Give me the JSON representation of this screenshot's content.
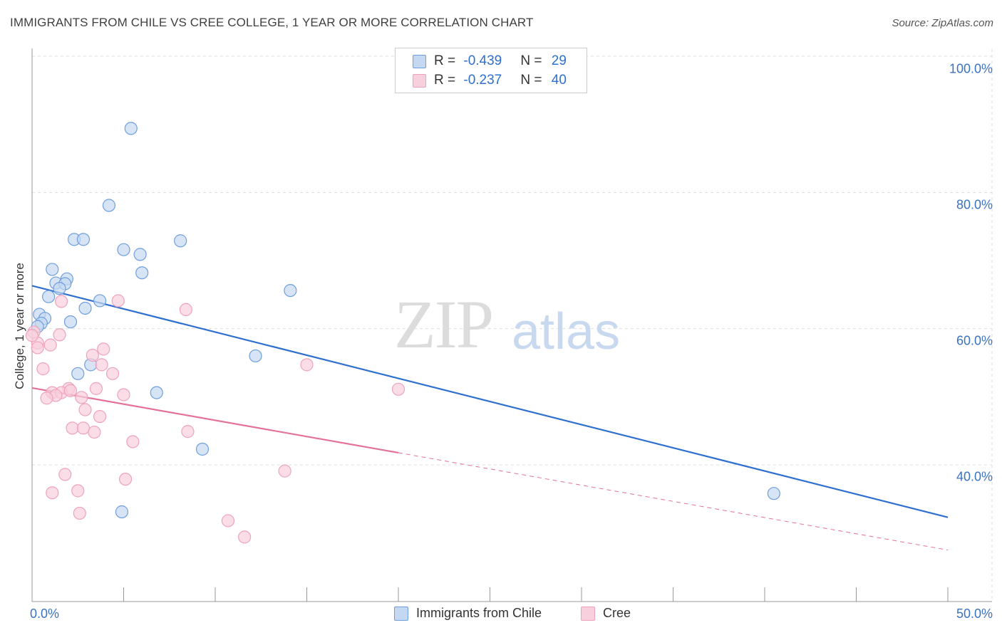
{
  "chart_data": {
    "type": "scatter",
    "title": "IMMIGRANTS FROM CHILE VS CREE COLLEGE, 1 YEAR OR MORE CORRELATION CHART",
    "source": "Source: ZipAtlas.com",
    "xlabel": "",
    "ylabel": "College, 1 year or more",
    "xlim": [
      0,
      50
    ],
    "ylim": [
      23,
      102
    ],
    "x_tick_labels": [
      "0.0%",
      "50.0%"
    ],
    "y_ticks": [
      {
        "value": 100,
        "label": "100.0%"
      },
      {
        "value": 80,
        "label": "80.0%"
      },
      {
        "value": 60,
        "label": "60.0%"
      },
      {
        "value": 40,
        "label": "40.0%"
      }
    ],
    "grid": true,
    "legend_position": "top-center",
    "watermark": {
      "zip": "ZIP",
      "atlas": "atlas"
    },
    "series": [
      {
        "name": "Immigrants from Chile",
        "color": "#6f9fdc",
        "fill": "#c4d8f2",
        "line_color": "#2f6fd0",
        "r_label": "R = ",
        "r_value": "-0.439",
        "n_label": "N = ",
        "n_value": "29",
        "trend": {
          "x0": 0,
          "y0": 66.3,
          "x1": 50,
          "y1": 32.3,
          "dash_from": null
        },
        "points": [
          [
            5.4,
            89.4
          ],
          [
            4.2,
            78.1
          ],
          [
            2.3,
            73.1
          ],
          [
            2.8,
            73.1
          ],
          [
            8.1,
            72.9
          ],
          [
            5.0,
            71.6
          ],
          [
            5.9,
            70.9
          ],
          [
            1.1,
            68.7
          ],
          [
            1.9,
            67.3
          ],
          [
            6.0,
            68.2
          ],
          [
            1.3,
            66.7
          ],
          [
            1.8,
            66.6
          ],
          [
            1.5,
            65.9
          ],
          [
            0.9,
            64.7
          ],
          [
            3.7,
            64.1
          ],
          [
            2.9,
            63.0
          ],
          [
            0.4,
            62.1
          ],
          [
            0.7,
            61.5
          ],
          [
            2.1,
            61.0
          ],
          [
            0.5,
            60.8
          ],
          [
            0.3,
            60.3
          ],
          [
            14.1,
            65.6
          ],
          [
            12.2,
            56.0
          ],
          [
            3.2,
            54.7
          ],
          [
            2.5,
            53.4
          ],
          [
            6.8,
            50.6
          ],
          [
            9.3,
            42.3
          ],
          [
            4.9,
            33.1
          ],
          [
            40.5,
            35.8
          ]
        ]
      },
      {
        "name": "Cree",
        "color": "#eea3bb",
        "fill": "#f8cfdc",
        "line_color": "#e3719a",
        "r_label": "R = ",
        "r_value": "-0.237",
        "n_label": "N = ",
        "n_value": "40",
        "trend": {
          "x0": 0,
          "y0": 51.3,
          "x1": 50,
          "y1": 27.5,
          "dash_from": 20
        },
        "points": [
          [
            4.7,
            64.1
          ],
          [
            1.6,
            64.0
          ],
          [
            8.4,
            62.8
          ],
          [
            0.1,
            59.5
          ],
          [
            1.5,
            59.1
          ],
          [
            0.3,
            57.9
          ],
          [
            1.0,
            57.6
          ],
          [
            0.3,
            57.2
          ],
          [
            3.9,
            57.0
          ],
          [
            3.3,
            56.1
          ],
          [
            15.0,
            54.7
          ],
          [
            3.8,
            54.7
          ],
          [
            0.6,
            54.1
          ],
          [
            4.4,
            53.4
          ],
          [
            20.0,
            51.1
          ],
          [
            2.0,
            51.2
          ],
          [
            3.5,
            51.2
          ],
          [
            1.1,
            50.6
          ],
          [
            1.6,
            50.6
          ],
          [
            2.1,
            50.9
          ],
          [
            1.3,
            50.2
          ],
          [
            0.8,
            49.8
          ],
          [
            2.7,
            49.9
          ],
          [
            5.0,
            50.3
          ],
          [
            2.9,
            48.1
          ],
          [
            3.7,
            47.1
          ],
          [
            2.2,
            45.4
          ],
          [
            2.8,
            45.4
          ],
          [
            3.4,
            44.8
          ],
          [
            8.5,
            44.9
          ],
          [
            5.5,
            43.4
          ],
          [
            1.8,
            38.6
          ],
          [
            5.1,
            37.9
          ],
          [
            13.8,
            39.1
          ],
          [
            2.5,
            36.2
          ],
          [
            1.1,
            35.9
          ],
          [
            2.6,
            32.9
          ],
          [
            10.7,
            31.8
          ],
          [
            11.6,
            29.4
          ],
          [
            0.0,
            59.0
          ]
        ]
      }
    ]
  }
}
